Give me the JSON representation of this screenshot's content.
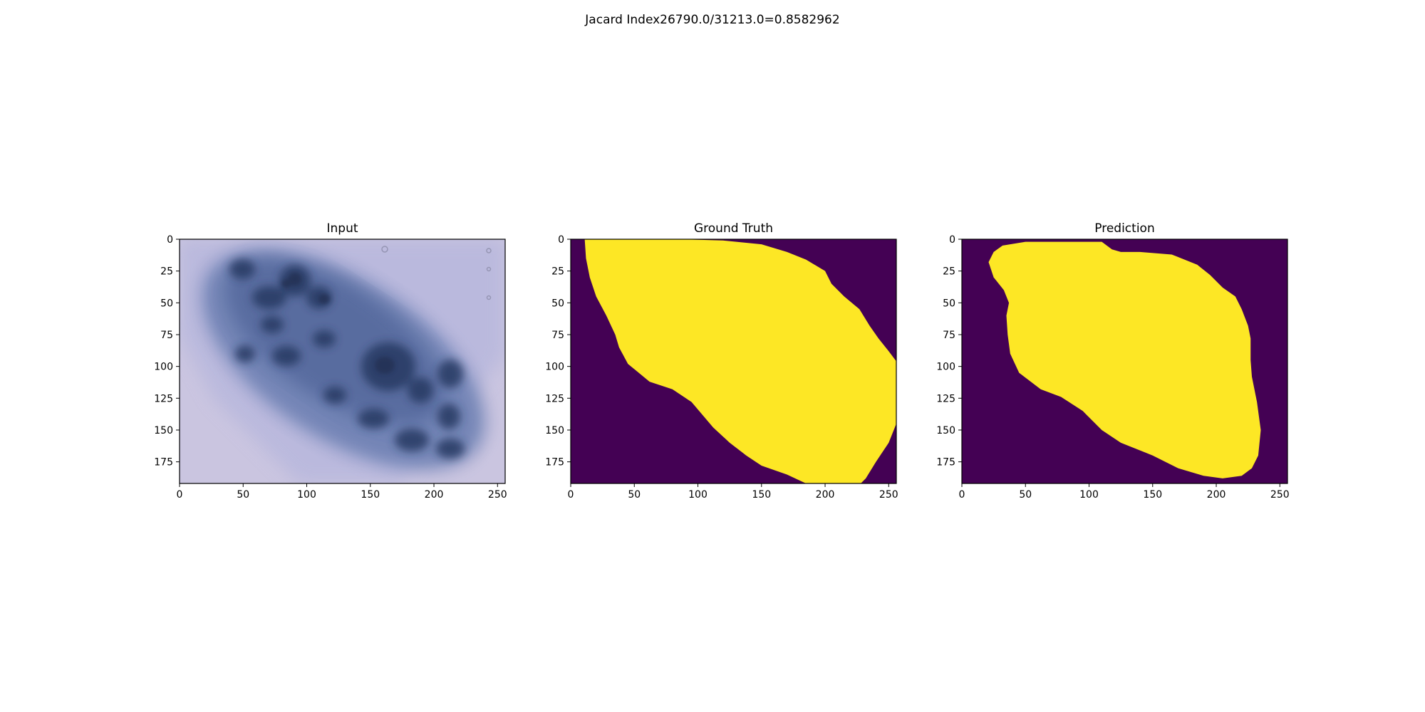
{
  "figure": {
    "suptitle": "Jacard Index26790.0/31213.0=0.8582962"
  },
  "colors": {
    "mask_background": "#440154",
    "mask_foreground": "#fde725",
    "axis": "#000000",
    "skin": "#c9c4e0",
    "lesion": "#3a4f86"
  },
  "chart_data": [
    {
      "type": "heatmap",
      "title": "Input",
      "content": "dermoscopy image",
      "x_ticks": [
        0,
        50,
        100,
        150,
        200,
        250
      ],
      "y_ticks": [
        0,
        25,
        50,
        75,
        100,
        125,
        150,
        175
      ],
      "xlim": [
        0,
        256
      ],
      "ylim": [
        192,
        0
      ]
    },
    {
      "type": "heatmap",
      "title": "Ground Truth",
      "content": "binary mask",
      "x_ticks": [
        0,
        50,
        100,
        150,
        200,
        250
      ],
      "y_ticks": [
        0,
        25,
        50,
        75,
        100,
        125,
        150,
        175
      ],
      "xlim": [
        0,
        256
      ],
      "ylim": [
        192,
        0
      ],
      "mask_outline": [
        [
          11,
          0
        ],
        [
          85,
          0
        ],
        [
          120,
          1
        ],
        [
          150,
          4
        ],
        [
          170,
          10
        ],
        [
          185,
          16
        ],
        [
          200,
          25
        ],
        [
          205,
          35
        ],
        [
          215,
          45
        ],
        [
          227,
          55
        ],
        [
          235,
          68
        ],
        [
          242,
          78
        ],
        [
          250,
          88
        ],
        [
          256,
          96
        ],
        [
          256,
          145
        ],
        [
          250,
          160
        ],
        [
          240,
          175
        ],
        [
          232,
          188
        ],
        [
          228,
          192
        ],
        [
          185,
          192
        ],
        [
          170,
          185
        ],
        [
          150,
          178
        ],
        [
          138,
          170
        ],
        [
          125,
          160
        ],
        [
          112,
          148
        ],
        [
          95,
          128
        ],
        [
          80,
          118
        ],
        [
          62,
          112
        ],
        [
          45,
          98
        ],
        [
          38,
          85
        ],
        [
          35,
          75
        ],
        [
          28,
          60
        ],
        [
          20,
          45
        ],
        [
          15,
          30
        ],
        [
          12,
          15
        ]
      ]
    },
    {
      "type": "heatmap",
      "title": "Prediction",
      "content": "binary mask",
      "x_ticks": [
        0,
        50,
        100,
        150,
        200,
        250
      ],
      "y_ticks": [
        0,
        25,
        50,
        75,
        100,
        125,
        150,
        175
      ],
      "xlim": [
        0,
        256
      ],
      "ylim": [
        192,
        0
      ],
      "mask_outline": [
        [
          25,
          10
        ],
        [
          32,
          5
        ],
        [
          50,
          2
        ],
        [
          110,
          2
        ],
        [
          118,
          8
        ],
        [
          125,
          10
        ],
        [
          140,
          10
        ],
        [
          165,
          12
        ],
        [
          185,
          20
        ],
        [
          195,
          28
        ],
        [
          205,
          38
        ],
        [
          215,
          45
        ],
        [
          220,
          55
        ],
        [
          225,
          68
        ],
        [
          227,
          78
        ],
        [
          227,
          95
        ],
        [
          228,
          108
        ],
        [
          232,
          128
        ],
        [
          235,
          150
        ],
        [
          233,
          170
        ],
        [
          228,
          180
        ],
        [
          220,
          186
        ],
        [
          205,
          188
        ],
        [
          190,
          186
        ],
        [
          170,
          180
        ],
        [
          150,
          170
        ],
        [
          125,
          160
        ],
        [
          110,
          150
        ],
        [
          95,
          135
        ],
        [
          78,
          124
        ],
        [
          62,
          118
        ],
        [
          45,
          105
        ],
        [
          38,
          90
        ],
        [
          36,
          75
        ],
        [
          35,
          60
        ],
        [
          37,
          50
        ],
        [
          33,
          40
        ],
        [
          25,
          30
        ],
        [
          21,
          18
        ]
      ]
    }
  ]
}
